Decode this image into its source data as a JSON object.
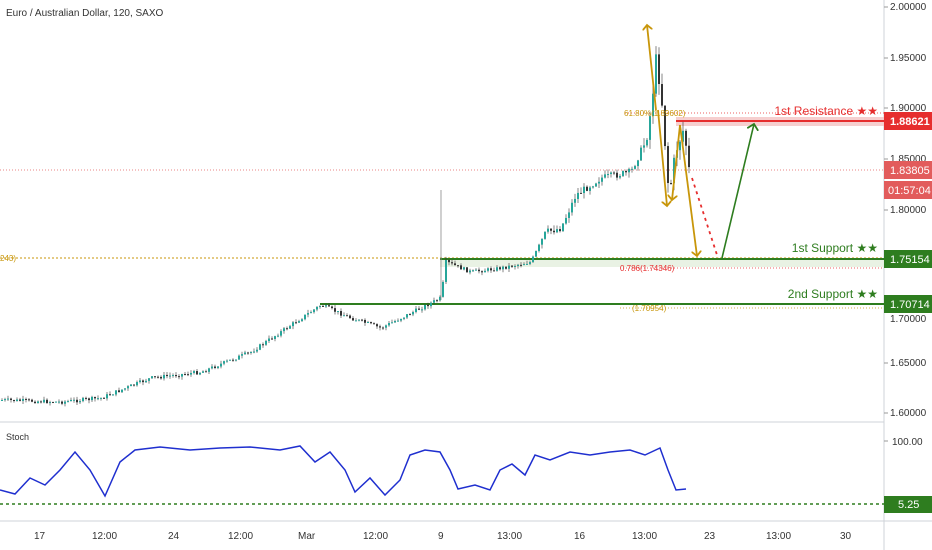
{
  "header": {
    "symbol_title": "Euro / Australian Dollar, 120, SAXO"
  },
  "indicator": {
    "name": "Stoch",
    "current_badge": "5.25",
    "levels": [
      100.0
    ]
  },
  "price_axis": {
    "labels": [
      "2.00000",
      "1.95000",
      "1.90000",
      "1.85000",
      "1.80000",
      "1.70000",
      "1.65000",
      "1.60000"
    ]
  },
  "badges": {
    "resistance": {
      "value": "1.88621",
      "color": "#e62e2e"
    },
    "last_price": {
      "value": "1.83805",
      "color": "#e25c5c"
    },
    "countdown": {
      "value": "01:57:04",
      "color": "#e25c5c"
    },
    "support1": {
      "value": "1.75154",
      "color": "#2e7d1f"
    },
    "support2": {
      "value": "1.70714",
      "color": "#2e7d1f"
    }
  },
  "annotations": {
    "resistance_label": "1st Resistance ★★",
    "support1_label": "1st Support ★★",
    "support2_label": "2nd Support ★★",
    "fib_618": "61.80%(1.89602)",
    "fib_786": "0.786(1.74346)",
    "fib_left": "243)",
    "fib_bottom": "(1.70954)"
  },
  "time_axis": {
    "labels": [
      "17",
      "12:00",
      "24",
      "12:00",
      "Mar",
      "12:00",
      "9",
      "13:00",
      "16",
      "13:00",
      "23",
      "13:00",
      "30"
    ]
  },
  "chart_data": {
    "type": "line",
    "y_range": [
      1.59,
      2.01
    ],
    "stoch_range": [
      0,
      100
    ],
    "colors": {
      "up": "#26a69a",
      "down": "#333333",
      "stoch": "#1f2fcf",
      "support": "#2e7d1f",
      "resistance": "#e62e2e",
      "arrow": "#c8960a"
    }
  }
}
